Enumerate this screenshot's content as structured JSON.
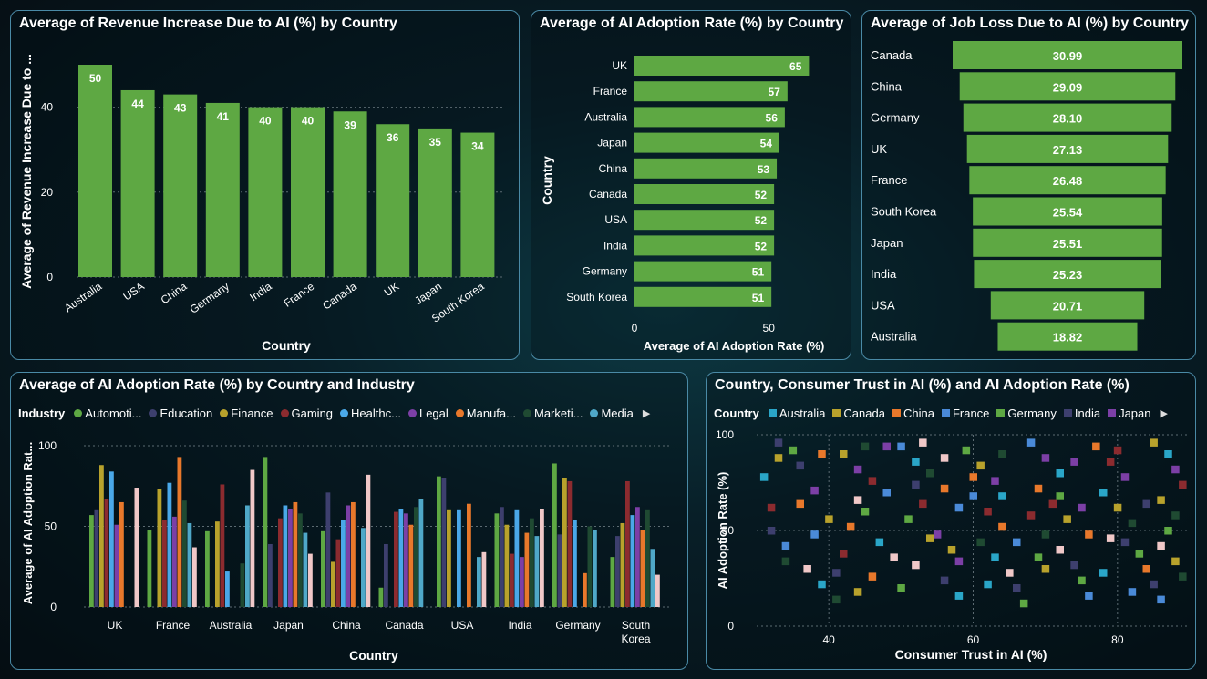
{
  "theme": {
    "bar_color": "#5ea843",
    "grid_color": "#5c6b72",
    "panel_border": "#4a8aa6"
  },
  "revenue": {
    "title": "Average of Revenue Increase Due to AI (%) by Country",
    "chart_data": {
      "type": "bar",
      "categories": [
        "Australia",
        "USA",
        "China",
        "Germany",
        "India",
        "France",
        "Canada",
        "UK",
        "Japan",
        "South Korea"
      ],
      "values": [
        50,
        44,
        43,
        41,
        40,
        40,
        39,
        36,
        35,
        34
      ],
      "labels": [
        "50",
        "44",
        "43",
        "41",
        "40",
        "40",
        "39",
        "36",
        "35",
        "34"
      ],
      "xlabel": "Country",
      "ylabel": "Average of Revenue Increase Due to ...",
      "yticks": [
        "0",
        "20",
        "40"
      ],
      "ylim": [
        0,
        50
      ],
      "grid": true
    }
  },
  "adoption": {
    "title": "Average of AI Adoption Rate (%) by Country",
    "chart_data": {
      "type": "bar",
      "orientation": "horizontal",
      "categories": [
        "UK",
        "France",
        "Australia",
        "Japan",
        "China",
        "Canada",
        "USA",
        "India",
        "Germany",
        "South Korea"
      ],
      "values": [
        65,
        57,
        56,
        54,
        53,
        52,
        52,
        52,
        51,
        51
      ],
      "labels": [
        "65",
        "57",
        "56",
        "54",
        "53",
        "52",
        "52",
        "52",
        "51",
        "51"
      ],
      "xlabel": "Average of AI Adoption Rate (%)",
      "ylabel": "Country",
      "xticks": [
        "0",
        "50"
      ],
      "xlim": [
        0,
        72
      ]
    }
  },
  "jobloss": {
    "title": "Average of Job Loss Due to AI (%) by Country",
    "chart_data": {
      "type": "bar",
      "orientation": "horizontal",
      "style": "funnel",
      "categories": [
        "Canada",
        "China",
        "Germany",
        "UK",
        "France",
        "South Korea",
        "Japan",
        "India",
        "USA",
        "Australia"
      ],
      "values": [
        30.99,
        29.09,
        28.1,
        27.13,
        26.48,
        25.54,
        25.51,
        25.23,
        20.71,
        18.82
      ],
      "labels": [
        "30.99",
        "29.09",
        "28.10",
        "27.13",
        "26.48",
        "25.54",
        "25.51",
        "25.23",
        "20.71",
        "18.82"
      ]
    }
  },
  "industry": {
    "title": "Average of AI Adoption Rate (%) by Country and Industry",
    "legend_title": "Industry",
    "legend": [
      {
        "name": "Automoti...",
        "color": "#5ea843"
      },
      {
        "name": "Education",
        "color": "#3d3f6e"
      },
      {
        "name": "Finance",
        "color": "#b8a22c"
      },
      {
        "name": "Gaming",
        "color": "#8c2b2f"
      },
      {
        "name": "Healthc...",
        "color": "#4aa8e8"
      },
      {
        "name": "Legal",
        "color": "#7c3fa6"
      },
      {
        "name": "Manufa...",
        "color": "#e8782b"
      },
      {
        "name": "Marketi...",
        "color": "#1f4a32"
      },
      {
        "name": "Media",
        "color": "#4fa8c8"
      }
    ],
    "chart_data": {
      "type": "bar",
      "grouped": true,
      "categories": [
        "UK",
        "France",
        "Australia",
        "Japan",
        "China",
        "Canada",
        "USA",
        "India",
        "Germany",
        "South Korea"
      ],
      "category_labels": [
        [
          "UK"
        ],
        [
          "France"
        ],
        [
          "Australia"
        ],
        [
          "Japan"
        ],
        [
          "China"
        ],
        [
          "Canada"
        ],
        [
          "USA"
        ],
        [
          "India"
        ],
        [
          "Germany"
        ],
        [
          "South",
          "Korea"
        ]
      ],
      "xlabel": "Country",
      "ylabel": "Average of AI Adoption Rat...",
      "yticks": [
        "0",
        "50",
        "100"
      ],
      "ylim": [
        0,
        100
      ],
      "series_colors": [
        "#5ea843",
        "#3d3f6e",
        "#b8a22c",
        "#8c2b2f",
        "#4aa8e8",
        "#7c3fa6",
        "#e8782b",
        "#1f4a32",
        "#4fa8c8",
        "#f0c8c8"
      ],
      "values": [
        [
          57,
          60,
          88,
          67,
          84,
          51,
          65,
          0,
          0,
          74
        ],
        [
          48,
          0,
          73,
          54,
          77,
          56,
          93,
          66,
          52,
          37
        ],
        [
          47,
          0,
          53,
          76,
          22,
          0,
          0,
          27,
          63,
          85
        ],
        [
          93,
          39,
          0,
          55,
          63,
          61,
          65,
          58,
          46,
          33
        ],
        [
          47,
          71,
          28,
          42,
          54,
          63,
          65,
          0,
          49,
          82
        ],
        [
          12,
          39,
          0,
          59,
          61,
          58,
          51,
          62,
          67,
          0
        ],
        [
          81,
          80,
          60,
          0,
          60,
          0,
          64,
          0,
          31,
          34
        ],
        [
          58,
          62,
          51,
          33,
          60,
          31,
          46,
          55,
          44,
          61
        ],
        [
          89,
          45,
          80,
          78,
          54,
          0,
          21,
          50,
          48,
          0
        ],
        [
          31,
          44,
          52,
          78,
          57,
          62,
          48,
          60,
          36,
          20
        ]
      ]
    }
  },
  "trust": {
    "title": "Country, Consumer Trust in AI (%) and AI Adoption Rate (%)",
    "legend_title": "Country",
    "legend": [
      {
        "name": "Australia",
        "color": "#2aa6c8"
      },
      {
        "name": "Canada",
        "color": "#b8a22c"
      },
      {
        "name": "China",
        "color": "#e8782b"
      },
      {
        "name": "France",
        "color": "#4a8ad8"
      },
      {
        "name": "Germany",
        "color": "#5ea843"
      },
      {
        "name": "India",
        "color": "#3d3f6e"
      },
      {
        "name": "Japan",
        "color": "#7c3fa6"
      }
    ],
    "chart_data": {
      "type": "scatter",
      "xlabel": "Consumer Trust in AI (%)",
      "ylabel": "AI Adoption Rate (%)",
      "xticks": [
        "40",
        "60",
        "80"
      ],
      "yticks": [
        "0",
        "50",
        "100"
      ],
      "xlim": [
        30,
        90
      ],
      "ylim": [
        0,
        100
      ],
      "colors": [
        "#2aa6c8",
        "#b8a22c",
        "#e8782b",
        "#4a8ad8",
        "#5ea843",
        "#3d3f6e",
        "#7c3fa6",
        "#1f4a32",
        "#f0c8c8",
        "#8c2b2f"
      ],
      "points": [
        [
          31,
          78,
          0
        ],
        [
          33,
          88,
          1
        ],
        [
          35,
          92,
          4
        ],
        [
          38,
          71,
          6
        ],
        [
          36,
          64,
          2
        ],
        [
          32,
          50,
          5
        ],
        [
          34,
          42,
          3
        ],
        [
          37,
          30,
          8
        ],
        [
          39,
          22,
          0
        ],
        [
          41,
          14,
          7
        ],
        [
          42,
          90,
          1
        ],
        [
          44,
          82,
          6
        ],
        [
          46,
          76,
          9
        ],
        [
          48,
          70,
          3
        ],
        [
          45,
          60,
          4
        ],
        [
          43,
          52,
          2
        ],
        [
          47,
          44,
          0
        ],
        [
          49,
          36,
          8
        ],
        [
          41,
          28,
          5
        ],
        [
          44,
          18,
          1
        ],
        [
          50,
          94,
          3
        ],
        [
          52,
          86,
          0
        ],
        [
          54,
          80,
          7
        ],
        [
          56,
          72,
          2
        ],
        [
          53,
          64,
          9
        ],
        [
          51,
          56,
          4
        ],
        [
          55,
          48,
          6
        ],
        [
          57,
          40,
          1
        ],
        [
          52,
          32,
          8
        ],
        [
          56,
          24,
          5
        ],
        [
          58,
          16,
          0
        ],
        [
          59,
          92,
          4
        ],
        [
          61,
          84,
          1
        ],
        [
          63,
          76,
          6
        ],
        [
          60,
          68,
          3
        ],
        [
          62,
          60,
          9
        ],
        [
          64,
          52,
          2
        ],
        [
          61,
          44,
          7
        ],
        [
          63,
          36,
          0
        ],
        [
          65,
          28,
          8
        ],
        [
          66,
          20,
          5
        ],
        [
          67,
          12,
          4
        ],
        [
          68,
          96,
          3
        ],
        [
          70,
          88,
          6
        ],
        [
          72,
          80,
          0
        ],
        [
          69,
          72,
          2
        ],
        [
          71,
          64,
          9
        ],
        [
          73,
          56,
          1
        ],
        [
          70,
          48,
          7
        ],
        [
          72,
          40,
          8
        ],
        [
          74,
          32,
          5
        ],
        [
          75,
          24,
          4
        ],
        [
          76,
          16,
          3
        ],
        [
          77,
          94,
          2
        ],
        [
          79,
          86,
          9
        ],
        [
          81,
          78,
          6
        ],
        [
          78,
          70,
          0
        ],
        [
          80,
          62,
          1
        ],
        [
          82,
          54,
          7
        ],
        [
          79,
          46,
          8
        ],
        [
          83,
          38,
          4
        ],
        [
          84,
          30,
          2
        ],
        [
          85,
          22,
          5
        ],
        [
          86,
          14,
          3
        ],
        [
          87,
          90,
          0
        ],
        [
          88,
          82,
          6
        ],
        [
          89,
          74,
          9
        ],
        [
          86,
          66,
          1
        ],
        [
          88,
          58,
          7
        ],
        [
          87,
          50,
          4
        ],
        [
          32,
          62,
          9
        ],
        [
          34,
          34,
          7
        ],
        [
          36,
          84,
          5
        ],
        [
          38,
          48,
          3
        ],
        [
          40,
          56,
          1
        ],
        [
          42,
          38,
          9
        ],
        [
          44,
          66,
          8
        ],
        [
          46,
          26,
          2
        ],
        [
          48,
          94,
          6
        ],
        [
          50,
          20,
          4
        ],
        [
          52,
          74,
          5
        ],
        [
          54,
          46,
          1
        ],
        [
          56,
          88,
          8
        ],
        [
          58,
          34,
          6
        ],
        [
          60,
          78,
          2
        ],
        [
          62,
          22,
          0
        ],
        [
          64,
          90,
          7
        ],
        [
          66,
          44,
          3
        ],
        [
          68,
          58,
          9
        ],
        [
          70,
          30,
          1
        ],
        [
          72,
          68,
          4
        ],
        [
          74,
          86,
          6
        ],
        [
          76,
          48,
          2
        ],
        [
          78,
          28,
          0
        ],
        [
          80,
          92,
          9
        ],
        [
          82,
          18,
          3
        ],
        [
          84,
          64,
          5
        ],
        [
          86,
          42,
          8
        ],
        [
          88,
          34,
          1
        ],
        [
          89,
          26,
          7
        ],
        [
          33,
          96,
          5
        ],
        [
          39,
          90,
          2
        ],
        [
          45,
          94,
          7
        ],
        [
          53,
          96,
          8
        ],
        [
          58,
          62,
          3
        ],
        [
          64,
          68,
          0
        ],
        [
          69,
          36,
          4
        ],
        [
          75,
          62,
          6
        ],
        [
          81,
          44,
          5
        ],
        [
          85,
          96,
          1
        ]
      ]
    }
  }
}
